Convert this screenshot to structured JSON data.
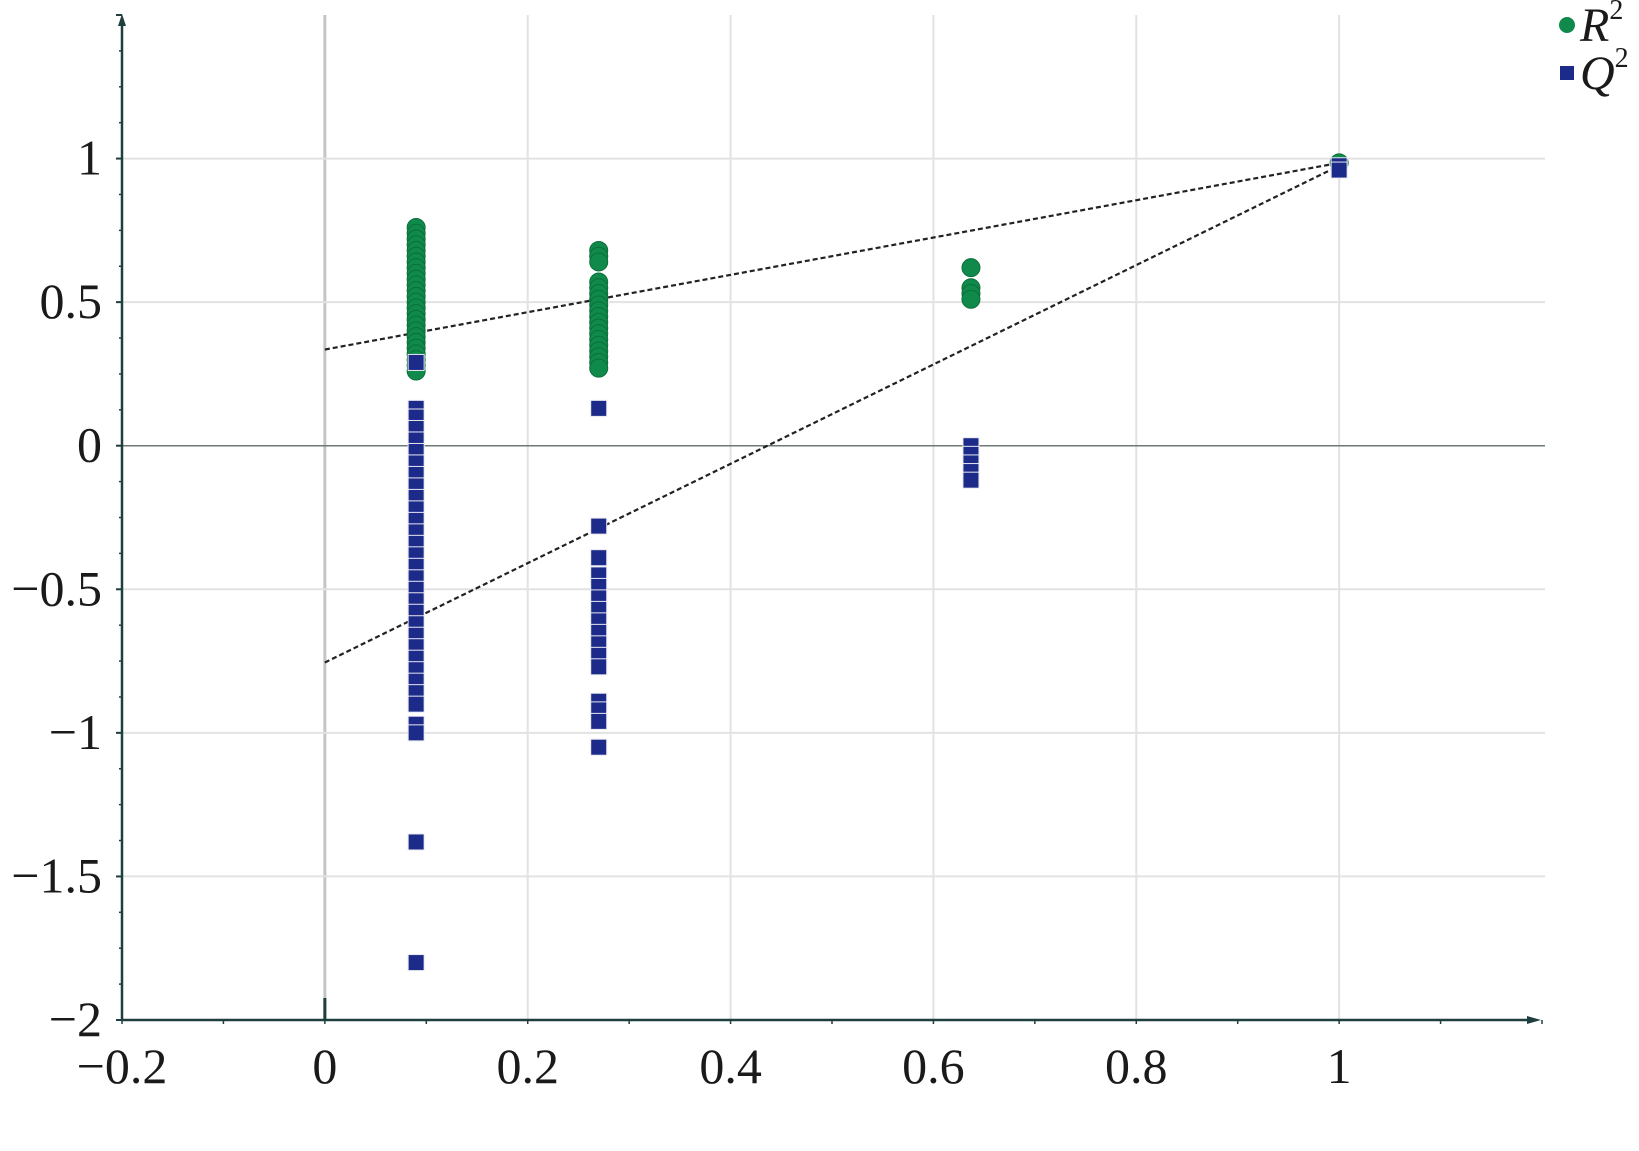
{
  "chart_data": {
    "type": "scatter",
    "title": "",
    "xlabel": "",
    "ylabel": "",
    "xlim": [
      -0.2,
      1.2
    ],
    "ylim": [
      -2,
      1.5
    ],
    "grid": true,
    "legend_position": "top-right",
    "x_ticks": [
      -0.2,
      0,
      0.2,
      0.4,
      0.6,
      0.8,
      1
    ],
    "x_tick_labels": [
      "−0.2",
      "0",
      "0.2",
      "0.4",
      "0.6",
      "0.8",
      "1"
    ],
    "y_ticks": [
      1,
      0.5,
      0,
      -0.5,
      -1,
      -1.5,
      -2
    ],
    "y_tick_labels": [
      "1",
      "0.5",
      "0",
      "−0.5",
      "−1",
      "−1.5",
      "−2"
    ],
    "series": [
      {
        "name": "R",
        "superscript": "2",
        "marker": "circle",
        "color": "#0f8a4a",
        "points": [
          [
            0.09,
            0.76
          ],
          [
            0.09,
            0.74
          ],
          [
            0.09,
            0.72
          ],
          [
            0.09,
            0.7
          ],
          [
            0.09,
            0.68
          ],
          [
            0.09,
            0.66
          ],
          [
            0.09,
            0.64
          ],
          [
            0.09,
            0.62
          ],
          [
            0.09,
            0.6
          ],
          [
            0.09,
            0.58
          ],
          [
            0.09,
            0.56
          ],
          [
            0.09,
            0.54
          ],
          [
            0.09,
            0.52
          ],
          [
            0.09,
            0.5
          ],
          [
            0.09,
            0.48
          ],
          [
            0.09,
            0.46
          ],
          [
            0.09,
            0.44
          ],
          [
            0.09,
            0.42
          ],
          [
            0.09,
            0.4
          ],
          [
            0.09,
            0.38
          ],
          [
            0.09,
            0.36
          ],
          [
            0.09,
            0.34
          ],
          [
            0.09,
            0.32
          ],
          [
            0.09,
            0.3
          ],
          [
            0.09,
            0.28
          ],
          [
            0.09,
            0.26
          ],
          [
            0.27,
            0.68
          ],
          [
            0.27,
            0.66
          ],
          [
            0.27,
            0.64
          ],
          [
            0.27,
            0.57
          ],
          [
            0.27,
            0.55
          ],
          [
            0.27,
            0.53
          ],
          [
            0.27,
            0.51
          ],
          [
            0.27,
            0.49
          ],
          [
            0.27,
            0.47
          ],
          [
            0.27,
            0.45
          ],
          [
            0.27,
            0.43
          ],
          [
            0.27,
            0.41
          ],
          [
            0.27,
            0.39
          ],
          [
            0.27,
            0.37
          ],
          [
            0.27,
            0.35
          ],
          [
            0.27,
            0.33
          ],
          [
            0.27,
            0.31
          ],
          [
            0.27,
            0.29
          ],
          [
            0.27,
            0.27
          ],
          [
            0.637,
            0.62
          ],
          [
            0.637,
            0.55
          ],
          [
            0.637,
            0.53
          ],
          [
            0.637,
            0.51
          ],
          [
            1.0,
            0.985
          ]
        ]
      },
      {
        "name": "Q",
        "superscript": "2",
        "marker": "square",
        "color": "#1c2a8a",
        "points": [
          [
            0.09,
            0.29
          ],
          [
            0.09,
            0.13
          ],
          [
            0.09,
            0.1
          ],
          [
            0.09,
            0.06
          ],
          [
            0.09,
            0.02
          ],
          [
            0.09,
            -0.02
          ],
          [
            0.09,
            -0.06
          ],
          [
            0.09,
            -0.1
          ],
          [
            0.09,
            -0.14
          ],
          [
            0.09,
            -0.18
          ],
          [
            0.09,
            -0.22
          ],
          [
            0.09,
            -0.26
          ],
          [
            0.09,
            -0.3
          ],
          [
            0.09,
            -0.34
          ],
          [
            0.09,
            -0.38
          ],
          [
            0.09,
            -0.42
          ],
          [
            0.09,
            -0.46
          ],
          [
            0.09,
            -0.5
          ],
          [
            0.09,
            -0.54
          ],
          [
            0.09,
            -0.58
          ],
          [
            0.09,
            -0.62
          ],
          [
            0.09,
            -0.66
          ],
          [
            0.09,
            -0.7
          ],
          [
            0.09,
            -0.74
          ],
          [
            0.09,
            -0.78
          ],
          [
            0.09,
            -0.82
          ],
          [
            0.09,
            -0.86
          ],
          [
            0.09,
            -0.9
          ],
          [
            0.09,
            -0.97
          ],
          [
            0.09,
            -1.0
          ],
          [
            0.09,
            -1.38
          ],
          [
            0.09,
            -1.8
          ],
          [
            0.27,
            0.13
          ],
          [
            0.27,
            -0.28
          ],
          [
            0.27,
            -0.39
          ],
          [
            0.27,
            -0.45
          ],
          [
            0.27,
            -0.49
          ],
          [
            0.27,
            -0.53
          ],
          [
            0.27,
            -0.57
          ],
          [
            0.27,
            -0.61
          ],
          [
            0.27,
            -0.65
          ],
          [
            0.27,
            -0.69
          ],
          [
            0.27,
            -0.73
          ],
          [
            0.27,
            -0.77
          ],
          [
            0.27,
            -0.89
          ],
          [
            0.27,
            -0.92
          ],
          [
            0.27,
            -0.96
          ],
          [
            0.27,
            -1.05
          ],
          [
            0.637,
            0.0
          ],
          [
            0.637,
            -0.03
          ],
          [
            0.637,
            -0.06
          ],
          [
            0.637,
            -0.09
          ],
          [
            0.637,
            -0.12
          ],
          [
            1.0,
            0.975
          ],
          [
            1.0,
            0.96
          ]
        ]
      }
    ],
    "trend_lines": [
      {
        "series": "R2",
        "x": [
          0,
          1
        ],
        "y": [
          0.335,
          0.985
        ]
      },
      {
        "series": "Q2",
        "x": [
          0,
          1
        ],
        "y": [
          -0.755,
          0.975
        ]
      }
    ]
  }
}
